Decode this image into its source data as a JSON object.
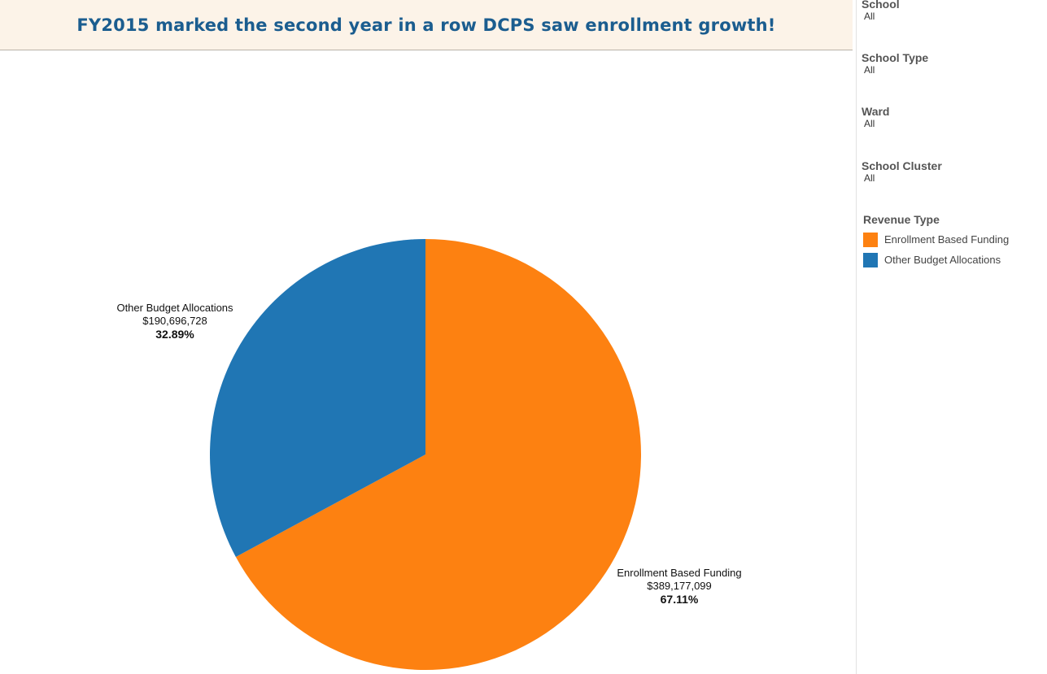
{
  "title": "FY2015 marked the second year in a row DCPS saw enrollment growth!",
  "filters": [
    {
      "label": "School",
      "value": "All"
    },
    {
      "label": "School Type",
      "value": "All"
    },
    {
      "label": "Ward",
      "value": "All"
    },
    {
      "label": "School Cluster",
      "value": "All"
    }
  ],
  "legend": {
    "title": "Revenue Type",
    "items": [
      {
        "label": "Enrollment Based Funding",
        "color": "#fd8111"
      },
      {
        "label": "Other Budget Allocations",
        "color": "#2076b4"
      }
    ]
  },
  "chart_data": {
    "type": "pie",
    "title": "",
    "slices": [
      {
        "label": "Enrollment Based Funding",
        "value": 389177099,
        "value_text": "$389,177,099",
        "percent": 67.11,
        "percent_text": "67.11%",
        "color": "#fd8111"
      },
      {
        "label": "Other Budget Allocations",
        "value": 190696728,
        "value_text": "$190,696,728",
        "percent": 32.89,
        "percent_text": "32.89%",
        "color": "#2076b4"
      }
    ],
    "start_angle": "12 o'clock",
    "direction": "clockwise",
    "legend_position": "right"
  }
}
